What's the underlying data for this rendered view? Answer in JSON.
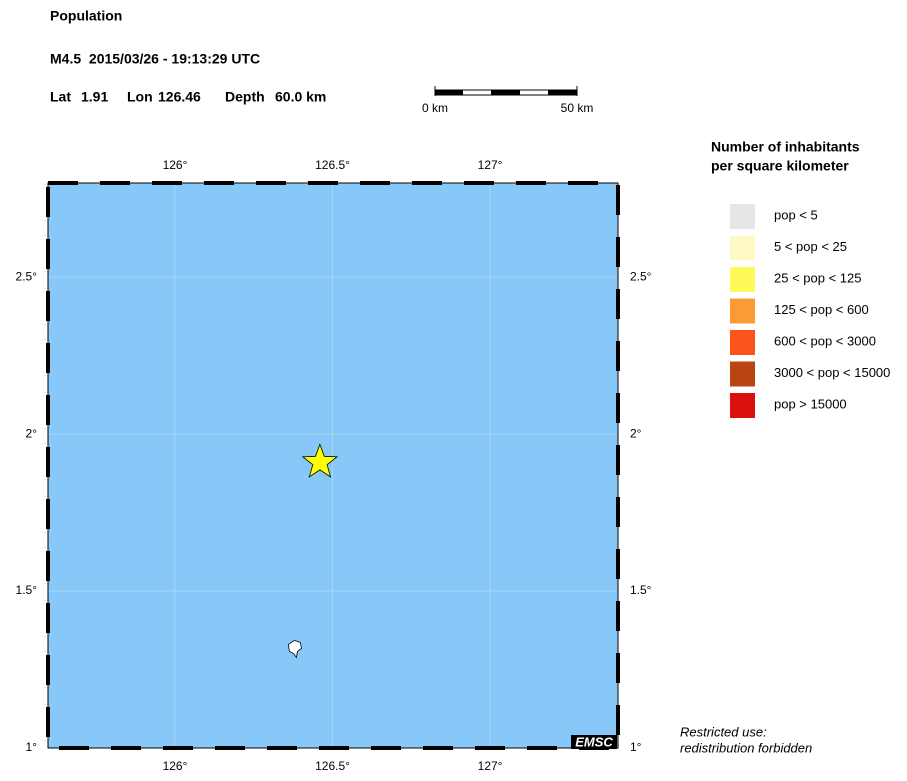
{
  "header": {
    "title": "Population",
    "event": "M4.5  2015/03/26 - 19:13:29 UTC",
    "lat": {
      "label": "Lat",
      "value": 1.91
    },
    "lon": {
      "label": "Lon",
      "value": 126.46
    },
    "depth": {
      "label": "Depth",
      "value": "60.0 km"
    }
  },
  "scale_bar": {
    "start": "0 km",
    "end": "50 km"
  },
  "map": {
    "lonlim": [
      125.597,
      127.406
    ],
    "latlim": [
      1,
      2.8
    ],
    "land_color": "#ffffff",
    "sea_color": "#87c8f8",
    "lon_ticks": [
      {
        "value": 126,
        "label": "126°"
      },
      {
        "value": 126.5,
        "label": "126.5°"
      },
      {
        "value": 127,
        "label": "127°"
      }
    ],
    "lat_ticks": [
      {
        "value": 1,
        "label": "1°"
      },
      {
        "value": 1.5,
        "label": "1.5°"
      },
      {
        "value": 2,
        "label": "2°"
      },
      {
        "value": 2.5,
        "label": "2.5°"
      }
    ],
    "credit": "EMSC"
  },
  "legend": {
    "title": [
      "Number of inhabitants",
      "per square kilometer"
    ],
    "items": [
      {
        "label": "pop < 5",
        "color": "#e6e6e6"
      },
      {
        "label": "5 < pop < 25",
        "color": "#fdf9c6"
      },
      {
        "label": "25 < pop < 125",
        "color": "#fdfa5a"
      },
      {
        "label": "125 < pop < 600",
        "color": "#fc9a35"
      },
      {
        "label": "600 < pop < 3000",
        "color": "#fb541b"
      },
      {
        "label": "3000 < pop < 15000",
        "color": "#b84512"
      },
      {
        "label": "pop > 15000",
        "color": "#d9100c"
      }
    ]
  },
  "notice": [
    "Restricted use:",
    "redistribution forbidden"
  ]
}
